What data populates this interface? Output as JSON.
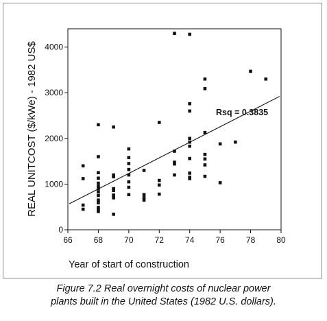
{
  "chart_data": {
    "type": "scatter",
    "xlabel": "Year of start of construction",
    "ylabel": "REAL UNITCOST ($/kWe) - 1982 US$",
    "xlim": [
      66,
      80
    ],
    "ylim": [
      0,
      4400
    ],
    "x_ticks": [
      66,
      68,
      70,
      72,
      74,
      76,
      78,
      80
    ],
    "y_ticks": [
      0,
      1000,
      2000,
      3000,
      4000
    ],
    "grid": false,
    "legend": "none",
    "annotation": "Rsq = 0.3835",
    "regression_line": {
      "x": [
        66.1,
        79.9
      ],
      "y": [
        570,
        2920
      ]
    },
    "points": {
      "x": [
        67,
        67,
        67,
        67,
        68,
        68,
        68,
        68,
        68,
        68,
        68,
        68,
        68,
        68,
        68,
        68,
        68,
        68,
        69,
        69,
        69,
        69,
        69,
        69,
        69,
        69,
        70,
        70,
        70,
        70,
        70,
        70,
        70,
        70,
        71,
        71,
        71,
        71,
        72,
        72,
        72,
        72,
        73,
        73,
        73,
        73,
        73,
        74,
        74,
        74,
        74,
        74,
        74,
        74,
        74,
        74,
        74,
        75,
        75,
        75,
        75,
        75,
        75,
        75,
        76,
        76,
        77,
        78,
        79
      ],
      "y": [
        1400,
        1120,
        540,
        450,
        2300,
        1600,
        1250,
        1130,
        1020,
        950,
        900,
        830,
        750,
        650,
        590,
        490,
        450,
        400,
        2250,
        1200,
        1160,
        900,
        860,
        760,
        700,
        340,
        1770,
        1580,
        1450,
        1320,
        1200,
        1050,
        930,
        770,
        1300,
        770,
        700,
        650,
        2350,
        1080,
        980,
        780,
        4300,
        1720,
        1480,
        1440,
        1200,
        4280,
        2760,
        2600,
        2000,
        1920,
        1830,
        1560,
        1240,
        1150,
        1120,
        3300,
        3090,
        2130,
        1650,
        1550,
        1420,
        1170,
        1880,
        1030,
        1920,
        3470,
        3300
      ]
    }
  },
  "caption": {
    "line1": "Figure 7.2 Real overnight costs of nuclear power",
    "line2": "plants built in the United States (1982 U.S. dollars)."
  }
}
